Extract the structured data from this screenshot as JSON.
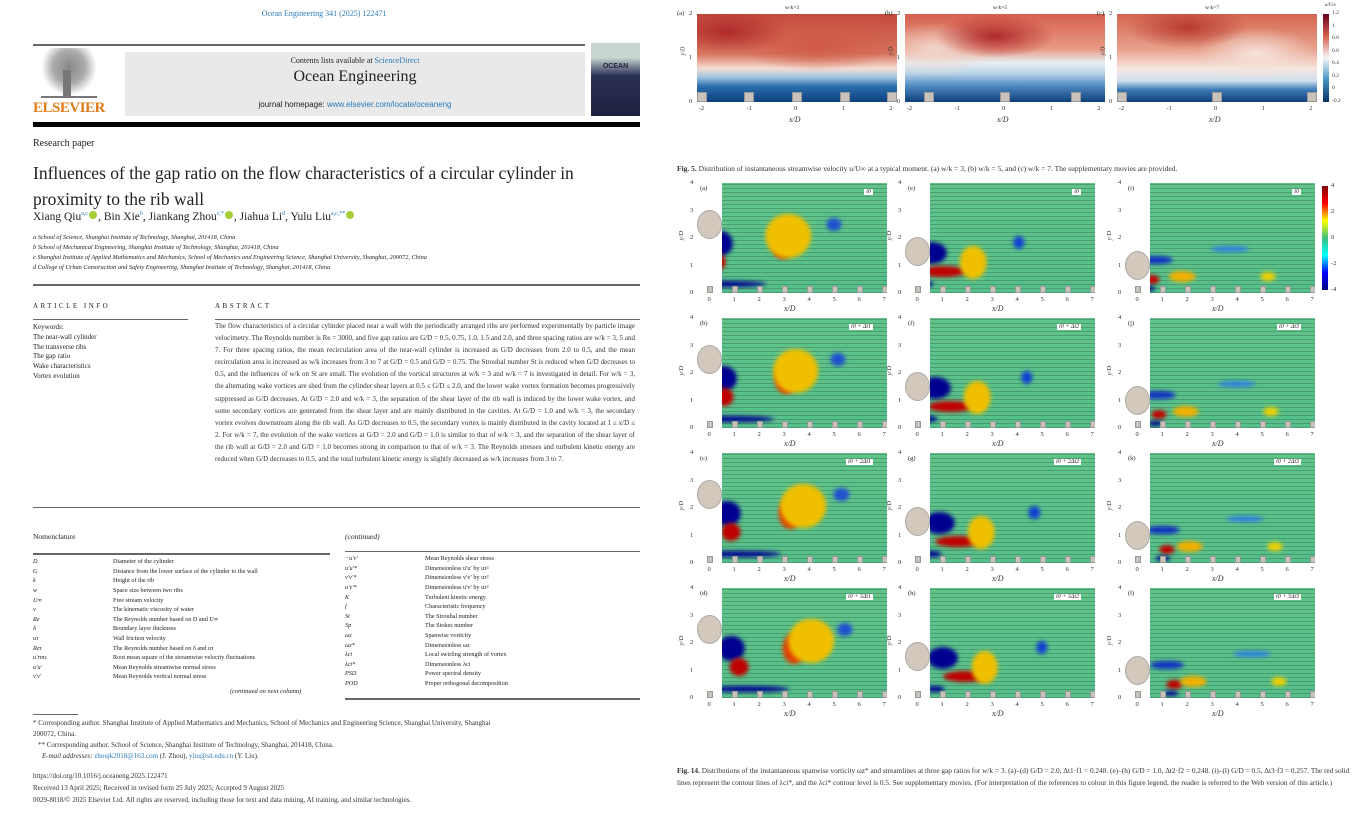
{
  "left_page": {
    "citation": "Ocean Engineering 341 (2025) 122471",
    "header": {
      "contents": "Contents lists available at ",
      "sciencedirect": "ScienceDirect",
      "journal": "Ocean Engineering",
      "homepage_label": "journal homepage: ",
      "homepage_url": "www.elsevier.com/locate/oceaneng",
      "publisher": "ELSEVIER",
      "cover_title": "OCEAN"
    },
    "article_type": "Research paper",
    "title": "Influences of the gap ratio on the flow characteristics of a circular cylinder in proximity to the rib wall",
    "authors": [
      {
        "name": "Xiang Qiu",
        "sup": "a,c",
        "orcid": true
      },
      {
        "name": "Bin Xie",
        "sup": "b",
        "orcid": false
      },
      {
        "name": "Jiankang Zhou",
        "sup": "c,*",
        "orcid": true
      },
      {
        "name": "Jiahua Li",
        "sup": "d",
        "orcid": false
      },
      {
        "name": "Yulu Liu",
        "sup": "a,c,**",
        "orcid": true
      }
    ],
    "affiliations": [
      "a School of Science, Shanghai Institute of Technology, Shanghai, 201418, China",
      "b School of Mechanical Engineering, Shanghai Institute of Technology, Shanghai, 201418, China",
      "c Shanghai Institute of Applied Mathematics and Mechanics, School of Mechanics and Engineering Science, Shanghai University, Shanghai, 200072, China",
      "d College of Urban Construction and Safety Engineering, Shanghai Institute of Technology, Shanghai, 201418, China"
    ],
    "article_info_heading": "ARTICLE INFO",
    "keywords_label": "Keywords:",
    "keywords": [
      "The near-wall cylinder",
      "The transverse ribs",
      "The gap ratio",
      "Wake characteristics",
      "Vortex evolution"
    ],
    "abstract_heading": "ABSTRACT",
    "abstract": "The flow characteristics of a circular cylinder placed near a wall with the periodically arranged ribs are performed experimentally by particle image velocimetry. The Reynolds number is Re = 3000, and five gap ratios are G/D = 0.5, 0.75, 1.0, 1.5 and 2.0, and three spacing ratios are w/k = 3, 5 and 7. For three spacing ratios, the mean recirculation area of the near-wall cylinder is increased as G/D decreases from 2.0 to 0.5, and the mean recirculation area is increased as w/k increases from 3 to 7 at G/D = 0.5 and G/D = 0.75. The Strouhal number St is reduced when G/D decreases to 0.5, and the influences of w/k on St are small. The evolution of the vortical structures at w/k = 3 and w/k = 7 is investigated in detail. For w/k = 3, the alternating wake vortices are shed from the cylinder shear layers at 0.5 ≤ G/D ≤ 2.0, and the lower wake vortex formation becomes progressively suppressed as G/D decreases. At G/D = 2.0 and w/k = 3, the separation of the shear layer of the rib wall is induced by the lower wake vortex, and some secondary vortices are generated from the shear layer and are mainly distributed in the cavities. At G/D = 1.0 and w/k = 3, the secondary vortex evolves downstream along the rib wall. As G/D decreases to 0.5, the secondary vortex is mainly distributed in the cavity located at 1 ≤ x/D ≤ 2. For w/k = 7, the evolution of the wake vortices at G/D = 2.0 and G/D = 1.0 is similar to that of w/k = 3, and the separation of the shear layer of the rib wall at G/D = 2.0 and G/D = 1.0 becomes strong in comparison to that of w/k = 3. The Reynolds stresses and turbulent kinetic energy are reduced when G/D decreases to 0.5, and the total turbulent kinetic energy is slightly decreased as w/k increases from 3 to 7.",
    "nomenclature": {
      "heading": "Nomenclature",
      "continued_heading": "(continued)",
      "continued_note": "(continued on next column)",
      "left": [
        [
          "D",
          "Diameter of the cylinder"
        ],
        [
          "G",
          "Distance from the lower surface of the cylinder to the wall"
        ],
        [
          "k",
          "Height of the rib"
        ],
        [
          "w",
          "Space size between two ribs"
        ],
        [
          "U∞",
          "Free stream velocity"
        ],
        [
          "ν",
          "The kinematic viscosity of water"
        ],
        [
          "Re",
          "The Reynolds number based on D and U∞"
        ],
        [
          "δ",
          "Boundary layer thickness"
        ],
        [
          "uτ",
          "Wall friction velocity"
        ],
        [
          "Reτ",
          "The Reynolds number based on δ and uτ"
        ],
        [
          "u′rms",
          "Root mean square of the streamwise velocity fluctuations"
        ],
        [
          "u′u′",
          "Mean Reynolds streamwise normal stress"
        ],
        [
          "v′v′",
          "Mean Reynolds vertical normal stress"
        ]
      ],
      "right": [
        [
          "−u′v′",
          "Mean Reynolds shear stress"
        ],
        [
          "u′u′*",
          "Dimensionless u′u′ by uτ²"
        ],
        [
          "v′v′*",
          "Dimensionless v′v′ by uτ²"
        ],
        [
          "u′v′*",
          "Dimensionless u′v′ by uτ²"
        ],
        [
          "K",
          "Turbulent kinetic energy"
        ],
        [
          "f",
          "Characteristic frequency"
        ],
        [
          "St",
          "The Strouhal number"
        ],
        [
          "Sp",
          "The Stokes number"
        ],
        [
          "ωz",
          "Spanwise vorticity"
        ],
        [
          "ωz*",
          "Dimensionless ωz"
        ],
        [
          "λci",
          "Local swirling strength of vortex"
        ],
        [
          "λci*",
          "Dimensionless λci"
        ],
        [
          "PSD",
          "Power spectral density"
        ],
        [
          "POD",
          "Proper orthogonal decomposition"
        ]
      ]
    },
    "footnotes": {
      "corr1": "* Corresponding author. Shanghai Institute of Applied Mathematics and Mechanics, School of Mechanics and Engineering Science, Shanghai University, Shanghai",
      "corr1b": "200072, China.",
      "corr2": "** Corresponding author. School of Science, Shanghai Institute of Technology, Shanghai, 201418, China.",
      "email_label": "E-mail addresses: ",
      "email1": "zhoujk2018@163.com",
      "email1_name": " (J. Zhou), ",
      "email2": "yliu@sit.edu.cn",
      "email2_name": " (Y. Liu)."
    },
    "doi": "https://doi.org/10.1016/j.oceaneng.2025.122471",
    "received": "Received 13 April 2025; Received in revised form 25 July 2025; Accepted 9 August 2025",
    "copyright": "0029-8018/© 2025 Elsevier Ltd. All rights are reserved, including those for text and data mining, AI training, and similar technologies."
  },
  "right_page": {
    "fig5": {
      "caption_label": "Fig. 5.",
      "caption": " Distribution of instantaneous streamwise velocity u/U∞ at a typical moment. (a) w/k = 3, (b) w/k = 5, and (c) w/k = 7. The supplementary movies are provided.",
      "panels": [
        {
          "label": "(a)",
          "title": "w/k=3"
        },
        {
          "label": "(b)",
          "title": "w/k=5"
        },
        {
          "label": "(c)",
          "title": "w/k=7"
        }
      ],
      "xlabel": "x/D",
      "ylabel": "y/D",
      "xticks": [
        "-2",
        "-1",
        "0",
        "1",
        "2"
      ],
      "yticks": [
        "0",
        "1",
        "2"
      ],
      "colorbar": {
        "label": "u/U∞",
        "ticks": [
          "1.2",
          "1",
          "0.8",
          "0.6",
          "0.4",
          "0.2",
          "0",
          "-0.2"
        ],
        "colormap": [
          "#67001f",
          "#d6604d",
          "#f7f7f7",
          "#4393c3",
          "#053061"
        ]
      }
    },
    "fig14": {
      "caption_label": "Fig. 14.",
      "caption": " Distributions of the instantaneous spanwise vorticity ωz* and streamlines at three gap ratios for w/k = 3. (a)–(d) G/D = 2.0, Δt1·f1 = 0.248. (e)–(h) G/D = 1.0, Δt2·f2 = 0.248. (i)–(l) G/D = 0.5, Δt3·f3 = 0.257. The red solid lines represent the contour lines of λci*, and the λci* contour level is 0.5. See supplementary movies. (For interpretation of the references to colour in this figure legend, the reader is referred to the Web version of this article.)",
      "columns": [
        {
          "gap_ratio": 2.0,
          "panels": [
            "(a)",
            "(b)",
            "(c)",
            "(d)"
          ],
          "times": [
            "t0",
            "t0 + Δt1",
            "t0 + 2Δt1",
            "t0 + 3Δt1"
          ]
        },
        {
          "gap_ratio": 1.0,
          "panels": [
            "(e)",
            "(f)",
            "(g)",
            "(h)"
          ],
          "times": [
            "t0",
            "t0 + Δt2",
            "t0 + 2Δt2",
            "t0 + 3Δt2"
          ]
        },
        {
          "gap_ratio": 0.5,
          "panels": [
            "(i)",
            "(j)",
            "(k)",
            "(l)"
          ],
          "times": [
            "t0",
            "t0 + Δt3",
            "t0 + 2Δt3",
            "t0 + 3Δt3"
          ]
        }
      ],
      "xlabel": "x/D",
      "ylabel": "y/D",
      "xticks": [
        "0",
        "1",
        "2",
        "3",
        "4",
        "5",
        "6",
        "7"
      ],
      "yticks": [
        "0",
        "1",
        "2",
        "3",
        "4"
      ],
      "colorbar": {
        "ticks": [
          "4",
          "2",
          "0",
          "-2",
          "-4"
        ],
        "colormap": [
          "#800000",
          "#ff0000",
          "#ffff00",
          "#40c080",
          "#00ffff",
          "#0000ff",
          "#000080"
        ]
      }
    }
  }
}
